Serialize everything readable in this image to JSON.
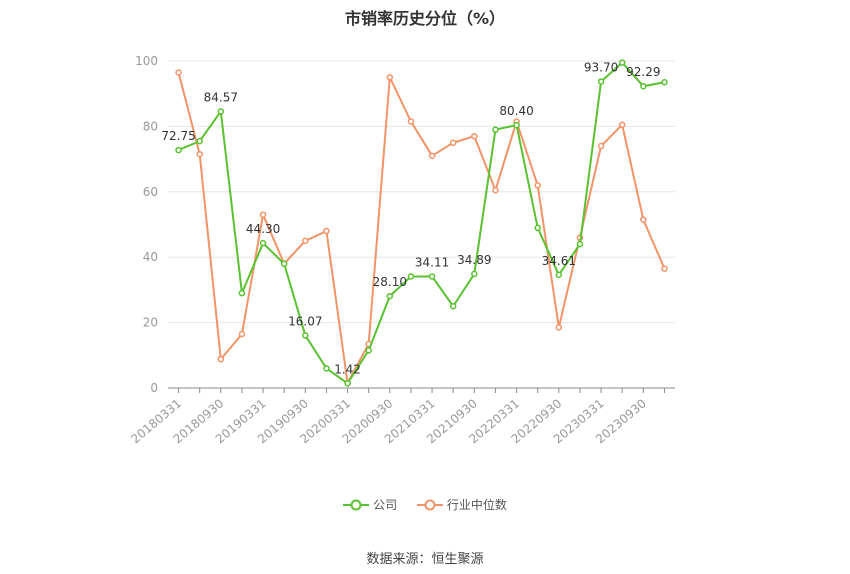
{
  "colors": {
    "company": "#5ac130",
    "industry": "#f29368",
    "grid": "#e6e6e6",
    "axis": "#999999"
  },
  "chart_data": {
    "type": "line",
    "title": "市销率历史分位（%）",
    "ylim": [
      0,
      100
    ],
    "yticks": [
      0,
      20,
      40,
      60,
      80,
      100
    ],
    "grid": true,
    "legend": "bottom-center",
    "x": [
      "20180331",
      "20180630",
      "20180930",
      "20181231",
      "20190331",
      "20190630",
      "20190930",
      "20191231",
      "20200331",
      "20200630",
      "20200930",
      "20201231",
      "20210331",
      "20210630",
      "20210930",
      "20211231",
      "20220331",
      "20220630",
      "20220930",
      "20221231",
      "20230331",
      "20230630",
      "20230930",
      "20231231"
    ],
    "xtick_labels": [
      "20180331",
      "20180930",
      "20190331",
      "20190930",
      "20200331",
      "20200930",
      "20210331",
      "20210930",
      "20220331",
      "20220930",
      "20230331",
      "20230930"
    ],
    "series": [
      {
        "name": "公司",
        "values": [
          72.75,
          75.5,
          84.57,
          29.0,
          44.3,
          38.0,
          16.07,
          6.0,
          1.42,
          11.5,
          28.1,
          34.11,
          34.11,
          25.0,
          34.89,
          79.0,
          80.4,
          49.0,
          34.61,
          44.0,
          93.7,
          99.5,
          92.29,
          93.5
        ],
        "labels": {
          "0": "72.75",
          "2": "84.57",
          "4": "44.30",
          "6": "16.07",
          "8": "1.42",
          "10": "28.10",
          "12": "34.11",
          "14": "34.89",
          "16": "80.40",
          "18": "34.61",
          "20": "93.70",
          "22": "92.29"
        }
      },
      {
        "name": "行业中位数",
        "values": [
          96.5,
          71.5,
          8.8,
          16.5,
          53.0,
          38.0,
          45.0,
          48.0,
          1.5,
          13.5,
          95.0,
          81.5,
          71.0,
          75.0,
          77.0,
          60.5,
          81.5,
          62.0,
          18.5,
          46.0,
          74.0,
          80.5,
          51.5,
          36.5
        ],
        "labels": {}
      }
    ]
  },
  "legend": {
    "company": "公司",
    "industry": "行业中位数"
  },
  "source": "数据来源：恒生聚源"
}
